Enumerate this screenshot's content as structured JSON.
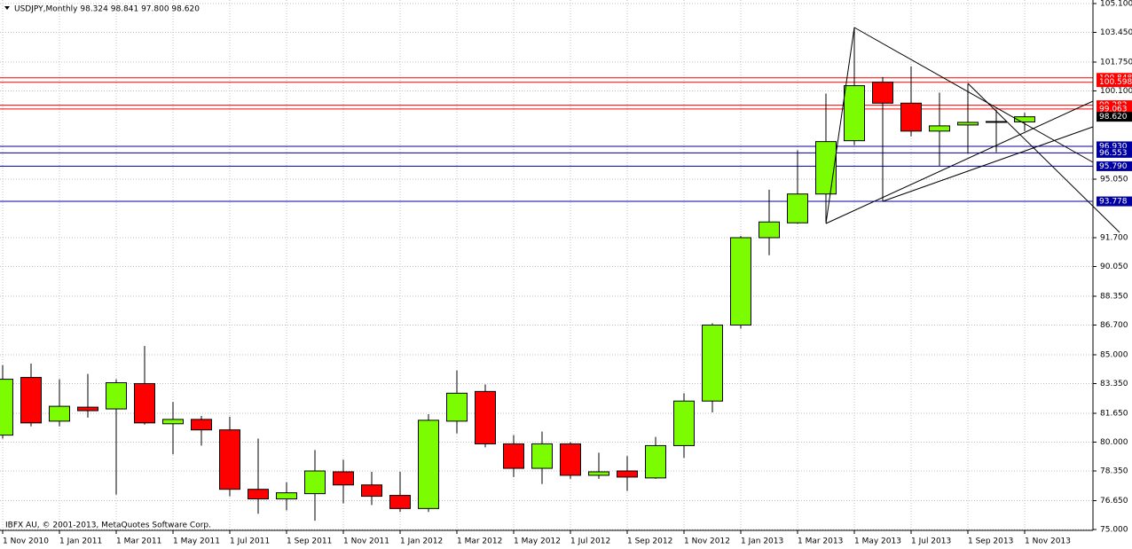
{
  "chart_data": {
    "type": "candlestick",
    "header": "USDJPY,Monthly  98.324 98.841 97.800 98.620",
    "footer": "IBFX AU, © 2001-2013, MetaQuotes Software Corp.",
    "categories": [
      "1 Nov 2010",
      null,
      "1 Jan 2011",
      null,
      "1 Mar 2011",
      null,
      "1 May 2011",
      null,
      "1 Jul 2011",
      null,
      "1 Sep 2011",
      null,
      "1 Nov 2011",
      null,
      "1 Jan 2012",
      null,
      "1 Mar 2012",
      null,
      "1 May 2012",
      null,
      "1 Jul 2012",
      null,
      "1 Sep 2012",
      null,
      "1 Nov 2012",
      null,
      "1 Jan 2013",
      null,
      "1 Mar 2013",
      null,
      "1 May 2013",
      null,
      "1 Jul 2013",
      null,
      "1 Sep 2013",
      null,
      "1 Nov 2013"
    ],
    "open": [
      80.4,
      83.7,
      81.2,
      82.0,
      81.9,
      83.35,
      81.05,
      81.3,
      80.7,
      77.3,
      76.75,
      77.05,
      78.3,
      77.55,
      76.95,
      76.2,
      81.2,
      82.9,
      79.9,
      78.5,
      79.9,
      78.1,
      78.35,
      77.95,
      79.8,
      82.35,
      86.7,
      91.7,
      92.55,
      94.2,
      97.25,
      100.6,
      99.4,
      97.8,
      98.15,
      98.3,
      98.324
    ],
    "high": [
      84.4,
      84.5,
      83.6,
      83.9,
      83.6,
      85.5,
      82.3,
      81.5,
      81.45,
      80.2,
      77.7,
      79.55,
      79.0,
      78.3,
      78.3,
      81.6,
      84.1,
      83.3,
      80.4,
      80.6,
      80.0,
      79.4,
      79.2,
      80.3,
      82.8,
      86.8,
      91.8,
      94.45,
      96.7,
      99.95,
      103.7,
      100.9,
      101.5,
      100.0,
      100.5,
      99.0,
      98.841
    ],
    "low": [
      80.2,
      80.9,
      80.9,
      81.4,
      77.0,
      81.0,
      79.3,
      79.8,
      76.9,
      75.9,
      76.1,
      75.5,
      76.5,
      76.4,
      76.0,
      76.0,
      80.5,
      79.7,
      78.0,
      77.6,
      77.9,
      77.9,
      77.2,
      77.9,
      79.1,
      81.7,
      86.5,
      90.7,
      92.5,
      92.6,
      97.0,
      93.8,
      97.5,
      95.8,
      96.5,
      96.6,
      97.8
    ],
    "close": [
      83.6,
      81.1,
      82.05,
      81.8,
      83.4,
      81.1,
      81.3,
      80.7,
      77.3,
      76.75,
      77.1,
      78.35,
      77.55,
      76.9,
      76.2,
      81.25,
      82.8,
      79.9,
      78.5,
      79.9,
      78.1,
      78.3,
      78.0,
      79.8,
      82.35,
      86.7,
      91.7,
      92.6,
      94.2,
      97.2,
      100.4,
      99.4,
      97.8,
      98.1,
      98.3,
      98.35,
      98.62
    ],
    "up_color": "#7cfc00",
    "down_color": "#ff0000",
    "ylim": [
      75.0,
      105.1
    ],
    "yticks": [
      {
        "value": 105.1,
        "label": "105.100"
      },
      {
        "value": 103.45,
        "label": "103.450"
      },
      {
        "value": 101.75,
        "label": "101.750"
      },
      {
        "value": 100.1,
        "label": "100.100"
      },
      {
        "value": 95.05,
        "label": "95.050"
      },
      {
        "value": 91.7,
        "label": "91.700"
      },
      {
        "value": 90.05,
        "label": "90.050"
      },
      {
        "value": 88.35,
        "label": "88.350"
      },
      {
        "value": 86.7,
        "label": "86.700"
      },
      {
        "value": 85.0,
        "label": "85.000"
      },
      {
        "value": 83.35,
        "label": "83.350"
      },
      {
        "value": 81.65,
        "label": "81.650"
      },
      {
        "value": 80.0,
        "label": "80.000"
      },
      {
        "value": 78.35,
        "label": "78.350"
      },
      {
        "value": 76.65,
        "label": "76.650"
      },
      {
        "value": 75.0,
        "label": "75.000"
      }
    ],
    "grid": true,
    "levels": [
      {
        "value": 100.848,
        "label": "100.848",
        "color": "#ff0000"
      },
      {
        "value": 100.598,
        "label": "100.598",
        "color": "#ff0000"
      },
      {
        "value": 99.282,
        "label": "99.282",
        "color": "#ff0000"
      },
      {
        "value": 99.063,
        "label": "99.063",
        "color": "#ff0000"
      },
      {
        "value": 96.93,
        "label": "96.930",
        "color": "#0000a0"
      },
      {
        "value": 96.553,
        "label": "96.553",
        "color": "#0000a0"
      },
      {
        "value": 95.79,
        "label": "95.790",
        "color": "#0000a0"
      },
      {
        "value": 93.778,
        "label": "93.778",
        "color": "#0000a0"
      }
    ],
    "current_price": {
      "value": 98.62,
      "label": "98.620"
    }
  }
}
